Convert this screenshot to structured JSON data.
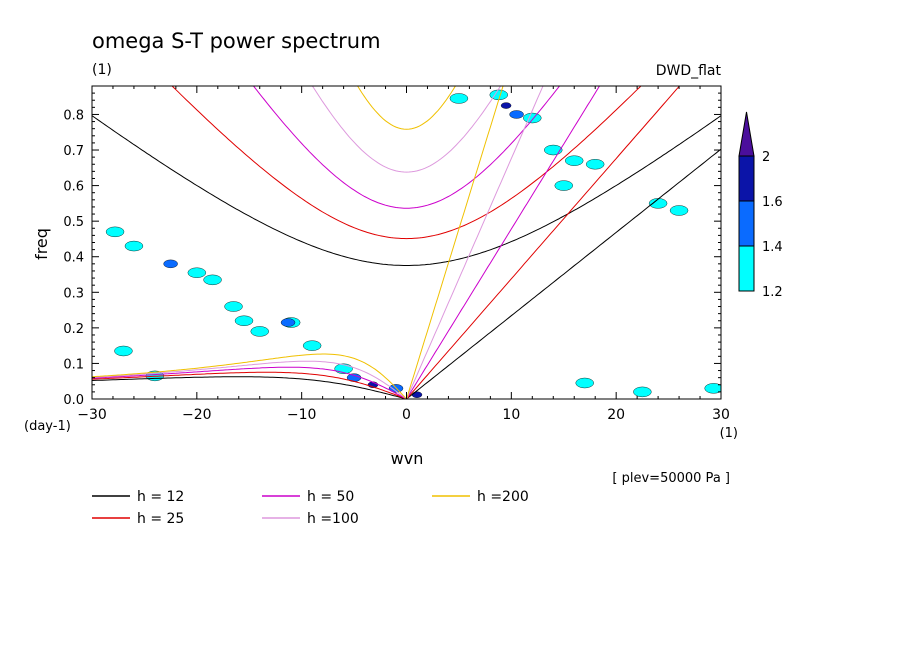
{
  "chart_data": {
    "type": "contour",
    "title": "omega S-T power spectrum",
    "subtitle_left": "(1)",
    "subtitle_right": "DWD_flat",
    "xlabel": "wvn",
    "ylabel": "freq",
    "x_unit": "(1)",
    "y_unit": "(day-1)",
    "xlim": [
      -30,
      30
    ],
    "ylim": [
      0,
      0.88
    ],
    "x_ticks": [
      -30,
      -20,
      -10,
      0,
      10,
      20,
      30
    ],
    "y_ticks": [
      0.0,
      0.1,
      0.2,
      0.3,
      0.4,
      0.5,
      0.6,
      0.7,
      0.8
    ],
    "annotation": "[ plev=50000 Pa ]",
    "colorbar": {
      "levels": [
        "1.2",
        "1.4",
        "1.6",
        "2"
      ],
      "colors": [
        "#00ffff",
        "#0a6bff",
        "#0b14a8",
        "#4b0f9c"
      ]
    },
    "legend": [
      {
        "label": "h = 12",
        "h": 12,
        "color": "#000000"
      },
      {
        "label": "h = 25",
        "h": 25,
        "color": "#e00000"
      },
      {
        "label": "h = 50",
        "h": 50,
        "color": "#cc00cc"
      },
      {
        "label": "h =100",
        "h": 100,
        "color": "#dd99dd"
      },
      {
        "label": "h =200",
        "h": 200,
        "color": "#f0c000"
      }
    ],
    "dispersion_families": [
      "kelvin",
      "rossby",
      "inertia-gravity"
    ],
    "blobs": [
      {
        "x": -27,
        "y": 0.135,
        "level": 0
      },
      {
        "x": -24,
        "y": 0.065,
        "level": 0
      },
      {
        "x": -27.8,
        "y": 0.47,
        "level": 0
      },
      {
        "x": -26,
        "y": 0.43,
        "level": 0
      },
      {
        "x": -22.5,
        "y": 0.38,
        "level": 1
      },
      {
        "x": -20,
        "y": 0.355,
        "level": 0
      },
      {
        "x": -18.5,
        "y": 0.335,
        "level": 0
      },
      {
        "x": -16.5,
        "y": 0.26,
        "level": 0
      },
      {
        "x": -15.5,
        "y": 0.22,
        "level": 0
      },
      {
        "x": -14,
        "y": 0.19,
        "level": 0
      },
      {
        "x": -11,
        "y": 0.215,
        "level": 0
      },
      {
        "x": -11.3,
        "y": 0.215,
        "level": 1
      },
      {
        "x": -9,
        "y": 0.15,
        "level": 0
      },
      {
        "x": -6,
        "y": 0.085,
        "level": 0
      },
      {
        "x": -5,
        "y": 0.06,
        "level": 1
      },
      {
        "x": -3.2,
        "y": 0.04,
        "level": 2
      },
      {
        "x": -1,
        "y": 0.03,
        "level": 1
      },
      {
        "x": 1,
        "y": 0.012,
        "level": 2
      },
      {
        "x": 8.8,
        "y": 0.855,
        "level": 0
      },
      {
        "x": 9.5,
        "y": 0.825,
        "level": 2
      },
      {
        "x": 10.5,
        "y": 0.8,
        "level": 1
      },
      {
        "x": 12,
        "y": 0.79,
        "level": 0
      },
      {
        "x": 5,
        "y": 0.845,
        "level": 0
      },
      {
        "x": 14,
        "y": 0.7,
        "level": 0
      },
      {
        "x": 16,
        "y": 0.67,
        "level": 0
      },
      {
        "x": 18,
        "y": 0.66,
        "level": 0
      },
      {
        "x": 15,
        "y": 0.6,
        "level": 0
      },
      {
        "x": 24,
        "y": 0.55,
        "level": 0
      },
      {
        "x": 26,
        "y": 0.53,
        "level": 0
      },
      {
        "x": 17,
        "y": 0.045,
        "level": 0
      },
      {
        "x": 22.5,
        "y": 0.02,
        "level": 0
      },
      {
        "x": 29.3,
        "y": 0.03,
        "level": 0
      }
    ]
  }
}
